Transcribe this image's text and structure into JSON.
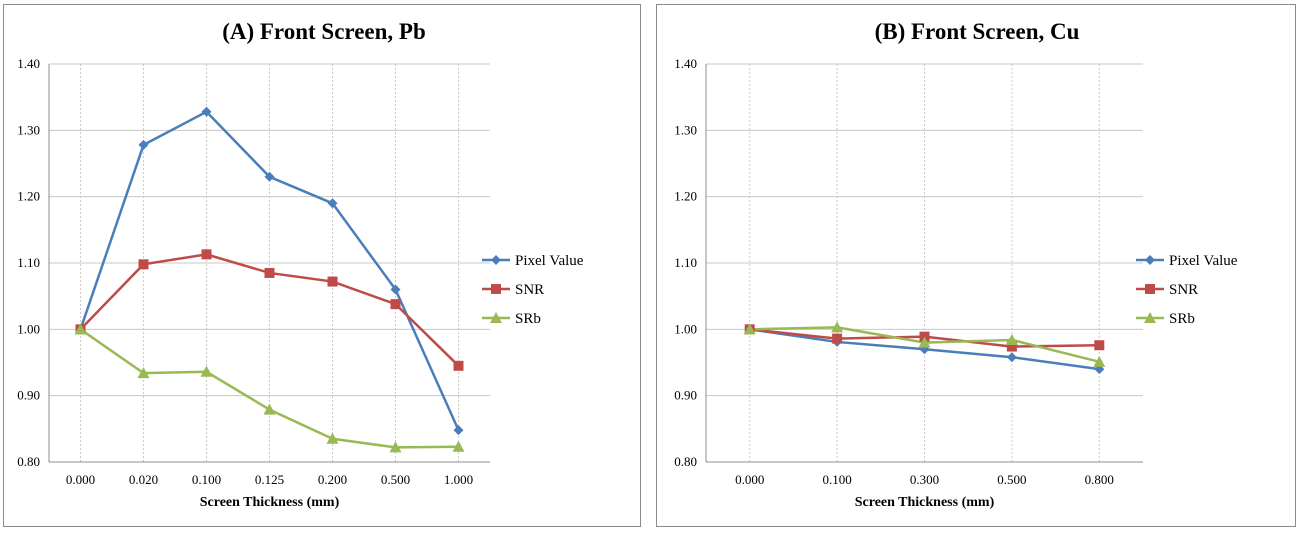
{
  "chart_data": [
    {
      "type": "line",
      "title": "(A) Front Screen, Pb",
      "xlabel": "Screen Thickness (mm)",
      "ylabel": "",
      "categories": [
        "0.000",
        "0.020",
        "0.100",
        "0.125",
        "0.200",
        "0.500",
        "1.000"
      ],
      "ylim": [
        0.8,
        1.4
      ],
      "yticks": [
        "0.80",
        "0.90",
        "1.00",
        "1.10",
        "1.20",
        "1.30",
        "1.40"
      ],
      "legend_position": "right",
      "series": [
        {
          "name": "Pixel Value",
          "color": "#4a7ebb",
          "marker": "diamond",
          "values": [
            1.0,
            1.278,
            1.328,
            1.23,
            1.19,
            1.06,
            0.848
          ]
        },
        {
          "name": "SNR",
          "color": "#be4b48",
          "marker": "square",
          "values": [
            1.0,
            1.098,
            1.113,
            1.085,
            1.072,
            1.038,
            0.945
          ]
        },
        {
          "name": "SRb",
          "color": "#98b954",
          "marker": "triangle",
          "values": [
            1.0,
            0.934,
            0.936,
            0.879,
            0.835,
            0.822,
            0.823
          ]
        }
      ]
    },
    {
      "type": "line",
      "title": "(B) Front Screen, Cu",
      "xlabel": "Screen Thickness (mm)",
      "ylabel": "",
      "categories": [
        "0.000",
        "0.100",
        "0.300",
        "0.500",
        "0.800"
      ],
      "ylim": [
        0.8,
        1.4
      ],
      "yticks": [
        "0.80",
        "0.90",
        "1.00",
        "1.10",
        "1.20",
        "1.30",
        "1.40"
      ],
      "legend_position": "right",
      "series": [
        {
          "name": "Pixel Value",
          "color": "#4a7ebb",
          "marker": "diamond",
          "values": [
            1.0,
            0.981,
            0.97,
            0.958,
            0.94
          ]
        },
        {
          "name": "SNR",
          "color": "#be4b48",
          "marker": "square",
          "values": [
            1.0,
            0.986,
            0.989,
            0.974,
            0.976
          ]
        },
        {
          "name": "SRb",
          "color": "#98b954",
          "marker": "triangle",
          "values": [
            1.0,
            1.003,
            0.98,
            0.984,
            0.951
          ]
        }
      ]
    }
  ]
}
